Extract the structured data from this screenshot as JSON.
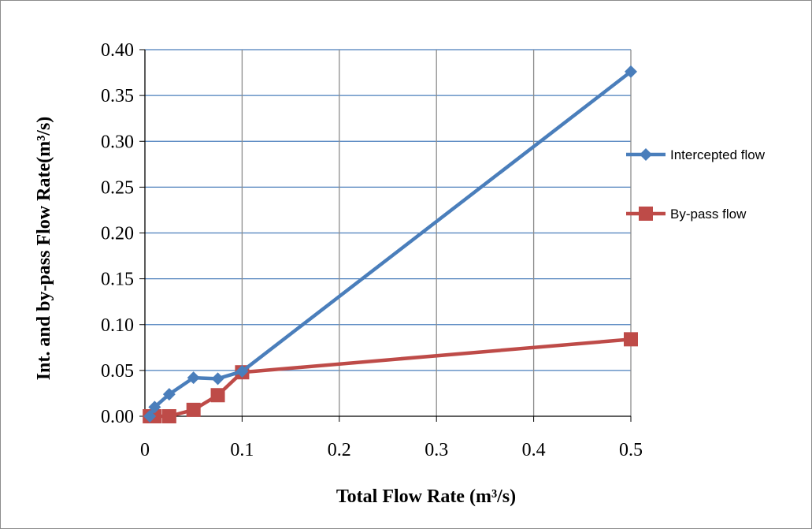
{
  "chart_data": {
    "type": "line",
    "xlabel": "Total Flow Rate (m³/s)",
    "ylabel": "Int. and by-pass Flow Rate(m³/s)",
    "x_tick_labels": [
      "0",
      "0.1",
      "0.2",
      "0.3",
      "0.4",
      "0.5"
    ],
    "y_tick_labels": [
      "0.00",
      "0.05",
      "0.10",
      "0.15",
      "0.20",
      "0.25",
      "0.30",
      "0.35",
      "0.40"
    ],
    "x_ticks": [
      0,
      0.1,
      0.2,
      0.3,
      0.4,
      0.5
    ],
    "y_ticks": [
      0,
      0.05,
      0.1,
      0.15,
      0.2,
      0.25,
      0.3,
      0.35,
      0.4
    ],
    "xlim": [
      0,
      0.5
    ],
    "ylim": [
      0,
      0.4
    ],
    "grid": true,
    "legend_position": "right",
    "series": [
      {
        "name": "Intercepted flow",
        "color": "#4a7ebb",
        "marker": "diamond",
        "x": [
          0.005,
          0.01,
          0.025,
          0.05,
          0.075,
          0.1,
          0.5
        ],
        "y": [
          0.0,
          0.01,
          0.024,
          0.042,
          0.041,
          0.049,
          0.376
        ]
      },
      {
        "name": "By-pass flow",
        "color": "#be4b48",
        "marker": "square",
        "x": [
          0.005,
          0.01,
          0.025,
          0.05,
          0.075,
          0.1,
          0.5
        ],
        "y": [
          0.0,
          0.0,
          0.0,
          0.007,
          0.023,
          0.048,
          0.084
        ]
      }
    ]
  }
}
